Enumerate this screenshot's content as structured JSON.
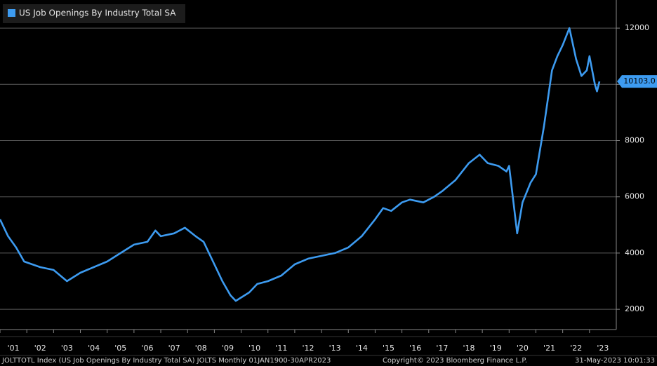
{
  "chart_data": {
    "type": "line",
    "legend_label": "US Job Openings By Industry Total SA",
    "footer_left": "JOLTTOTL Index (US Job Openings By Industry Total SA) JOLTS  Monthly 01JAN1900-30APR2023",
    "footer_center": "Copyright© 2023 Bloomberg Finance L.P.",
    "footer_right": "31-May-2023 10:01:33",
    "series": [
      {
        "name": "US Job Openings By Industry Total SA",
        "color": "#3d9bf0",
        "x": [
          2001.0,
          2001.3,
          2001.6,
          2001.9,
          2002.5,
          2003.0,
          2003.5,
          2004.0,
          2004.5,
          2005.0,
          2005.5,
          2006.0,
          2006.5,
          2006.8,
          2007.0,
          2007.5,
          2007.9,
          2008.3,
          2008.6,
          2009.0,
          2009.3,
          2009.6,
          2009.8,
          2010.3,
          2010.6,
          2011.0,
          2011.5,
          2012.0,
          2012.5,
          2013.0,
          2013.5,
          2014.0,
          2014.5,
          2015.0,
          2015.3,
          2015.6,
          2016.0,
          2016.3,
          2016.8,
          2017.2,
          2017.5,
          2018.0,
          2018.5,
          2018.9,
          2019.2,
          2019.6,
          2019.9,
          2020.0,
          2020.3,
          2020.5,
          2020.8,
          2021.0,
          2021.3,
          2021.6,
          2021.8,
          2022.0,
          2022.25,
          2022.5,
          2022.7,
          2022.9,
          2023.0,
          2023.2,
          2023.28,
          2023.37
        ],
        "values": [
          5200,
          4600,
          4200,
          3700,
          3500,
          3400,
          3000,
          3300,
          3500,
          3700,
          4000,
          4300,
          4400,
          4800,
          4600,
          4700,
          4900,
          4600,
          4400,
          3600,
          3000,
          2500,
          2300,
          2600,
          2900,
          3000,
          3200,
          3600,
          3800,
          3900,
          4000,
          4200,
          4600,
          5200,
          5600,
          5500,
          5800,
          5900,
          5800,
          6000,
          6200,
          6600,
          7200,
          7500,
          7200,
          7100,
          6900,
          7100,
          4700,
          5800,
          6500,
          6800,
          8500,
          10500,
          11000,
          11400,
          12000,
          10900,
          10300,
          10500,
          11000,
          10000,
          9750,
          10103
        ]
      }
    ],
    "last_label": {
      "value": 10103,
      "label": "10103.0"
    },
    "xlim": [
      2001,
      2024
    ],
    "xticks": [
      {
        "value": 2001,
        "label": "'01"
      },
      {
        "value": 2002,
        "label": "'02"
      },
      {
        "value": 2003,
        "label": "'03"
      },
      {
        "value": 2004,
        "label": "'04"
      },
      {
        "value": 2005,
        "label": "'05"
      },
      {
        "value": 2006,
        "label": "'06"
      },
      {
        "value": 2007,
        "label": "'07"
      },
      {
        "value": 2008,
        "label": "'08"
      },
      {
        "value": 2009,
        "label": "'09"
      },
      {
        "value": 2010,
        "label": "'10"
      },
      {
        "value": 2011,
        "label": "'11"
      },
      {
        "value": 2012,
        "label": "'12"
      },
      {
        "value": 2013,
        "label": "'13"
      },
      {
        "value": 2014,
        "label": "'14"
      },
      {
        "value": 2015,
        "label": "'15"
      },
      {
        "value": 2016,
        "label": "'16"
      },
      {
        "value": 2017,
        "label": "'17"
      },
      {
        "value": 2018,
        "label": "'18"
      },
      {
        "value": 2019,
        "label": "'19"
      },
      {
        "value": 2020,
        "label": "'20"
      },
      {
        "value": 2021,
        "label": "'21"
      },
      {
        "value": 2022,
        "label": "'22"
      },
      {
        "value": 2023,
        "label": "'23"
      }
    ],
    "ylim": [
      1280,
      13000
    ],
    "yticks": [
      2000,
      4000,
      6000,
      8000,
      10000,
      12000
    ],
    "grid": true
  }
}
